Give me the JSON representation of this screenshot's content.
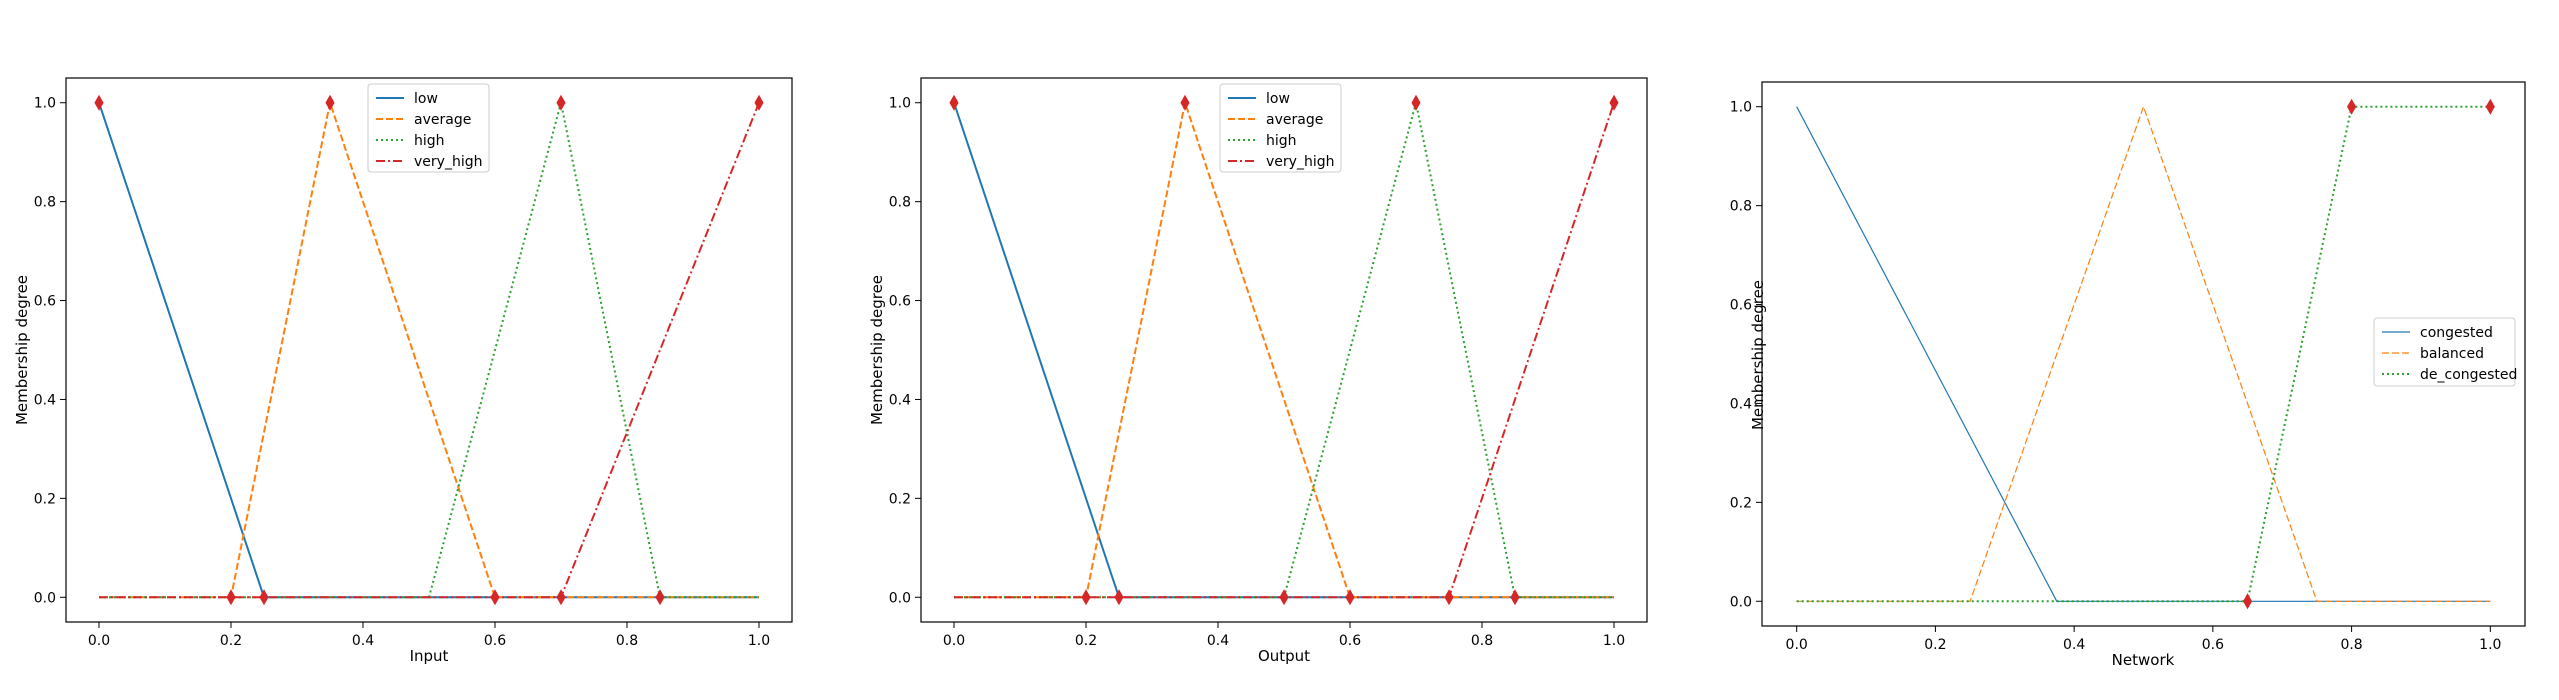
{
  "figure": {
    "background": "#ffffff"
  },
  "chart_data": [
    {
      "type": "line",
      "xlabel": "Input",
      "ylabel": "Membership degree",
      "xlim": [
        -0.05,
        1.05
      ],
      "ylim": [
        -0.05,
        1.05
      ],
      "xticks": [
        0.0,
        0.2,
        0.4,
        0.6,
        0.8,
        1.0
      ],
      "yticks": [
        0.0,
        0.2,
        0.4,
        0.6,
        0.8,
        1.0
      ],
      "tick_format": 1,
      "grid": false,
      "legend": {
        "placement": "upper-center"
      },
      "series": [
        {
          "name": "low",
          "color": "#1f77b4",
          "dash": "solid",
          "width": 2,
          "x": [
            0.0,
            0.25,
            1.0
          ],
          "y": [
            1.0,
            0.0,
            0.0
          ]
        },
        {
          "name": "average",
          "color": "#ff7f0e",
          "dash": "dashed",
          "width": 2,
          "x": [
            0.0,
            0.2,
            0.35,
            0.6,
            1.0
          ],
          "y": [
            0.0,
            0.0,
            1.0,
            0.0,
            0.0
          ]
        },
        {
          "name": "high",
          "color": "#2ca02c",
          "dash": "dotted",
          "width": 2,
          "x": [
            0.0,
            0.5,
            0.7,
            0.85,
            1.0
          ],
          "y": [
            0.0,
            0.0,
            1.0,
            0.0,
            0.0
          ]
        },
        {
          "name": "very_high",
          "color": "#d62728",
          "dash": "dashdot",
          "width": 2,
          "x": [
            0.0,
            0.7,
            1.0
          ],
          "y": [
            0.0,
            0.0,
            1.0
          ]
        }
      ],
      "markers": {
        "shape": "thin-diamond",
        "color": "#d62728",
        "points": [
          [
            0.0,
            1.0
          ],
          [
            0.2,
            0.0
          ],
          [
            0.25,
            0.0
          ],
          [
            0.35,
            1.0
          ],
          [
            0.6,
            0.0
          ],
          [
            0.7,
            1.0
          ],
          [
            0.7,
            0.0
          ],
          [
            0.85,
            0.0
          ],
          [
            1.0,
            1.0
          ]
        ]
      }
    },
    {
      "type": "line",
      "xlabel": "Output",
      "ylabel": "Membership degree",
      "xlim": [
        -0.05,
        1.05
      ],
      "ylim": [
        -0.05,
        1.05
      ],
      "xticks": [
        0.0,
        0.2,
        0.4,
        0.6,
        0.8,
        1.0
      ],
      "yticks": [
        0.0,
        0.2,
        0.4,
        0.6,
        0.8,
        1.0
      ],
      "tick_format": 1,
      "grid": false,
      "legend": {
        "placement": "upper-center"
      },
      "series": [
        {
          "name": "low",
          "color": "#1f77b4",
          "dash": "solid",
          "width": 2,
          "x": [
            0.0,
            0.25,
            1.0
          ],
          "y": [
            1.0,
            0.0,
            0.0
          ]
        },
        {
          "name": "average",
          "color": "#ff7f0e",
          "dash": "dashed",
          "width": 2,
          "x": [
            0.0,
            0.2,
            0.35,
            0.6,
            1.0
          ],
          "y": [
            0.0,
            0.0,
            1.0,
            0.0,
            0.0
          ]
        },
        {
          "name": "high",
          "color": "#2ca02c",
          "dash": "dotted",
          "width": 2,
          "x": [
            0.0,
            0.5,
            0.7,
            0.85,
            1.0
          ],
          "y": [
            0.0,
            0.0,
            1.0,
            0.0,
            0.0
          ]
        },
        {
          "name": "very_high",
          "color": "#d62728",
          "dash": "dashdot",
          "width": 2,
          "x": [
            0.0,
            0.75,
            1.0
          ],
          "y": [
            0.0,
            0.0,
            1.0
          ]
        }
      ],
      "markers": {
        "shape": "thin-diamond",
        "color": "#d62728",
        "points": [
          [
            0.0,
            1.0
          ],
          [
            0.2,
            0.0
          ],
          [
            0.25,
            0.0
          ],
          [
            0.35,
            1.0
          ],
          [
            0.5,
            0.0
          ],
          [
            0.6,
            0.0
          ],
          [
            0.7,
            1.0
          ],
          [
            0.75,
            0.0
          ],
          [
            0.85,
            0.0
          ],
          [
            1.0,
            1.0
          ]
        ]
      }
    },
    {
      "type": "line",
      "xlabel": "Network",
      "ylabel": "Membership degree",
      "xlim": [
        -0.05,
        1.05
      ],
      "ylim": [
        -0.05,
        1.05
      ],
      "xticks": [
        0.0,
        0.2,
        0.4,
        0.6,
        0.8,
        1.0
      ],
      "yticks": [
        0.0,
        0.2,
        0.4,
        0.6,
        0.8,
        1.0
      ],
      "tick_format": 1,
      "grid": false,
      "legend": {
        "placement": "center-right"
      },
      "series": [
        {
          "name": "congested",
          "color": "#1f77b4",
          "dash": "solid",
          "width": 1.2,
          "x": [
            0.0,
            0.375,
            1.0
          ],
          "y": [
            1.0,
            0.0,
            0.0
          ]
        },
        {
          "name": "balanced",
          "color": "#ff7f0e",
          "dash": "dashed",
          "width": 1.2,
          "x": [
            0.0,
            0.25,
            0.5,
            0.75,
            1.0
          ],
          "y": [
            0.0,
            0.0,
            1.0,
            0.0,
            0.0
          ]
        },
        {
          "name": "de_congested",
          "color": "#2ca02c",
          "dash": "dotted",
          "width": 2,
          "x": [
            0.0,
            0.65,
            0.8,
            1.0
          ],
          "y": [
            0.0,
            0.0,
            1.0,
            1.0
          ]
        }
      ],
      "markers": {
        "shape": "thin-diamond",
        "color": "#d62728",
        "points": [
          [
            0.65,
            0.0
          ],
          [
            0.8,
            1.0
          ],
          [
            1.0,
            1.0
          ]
        ]
      }
    }
  ]
}
